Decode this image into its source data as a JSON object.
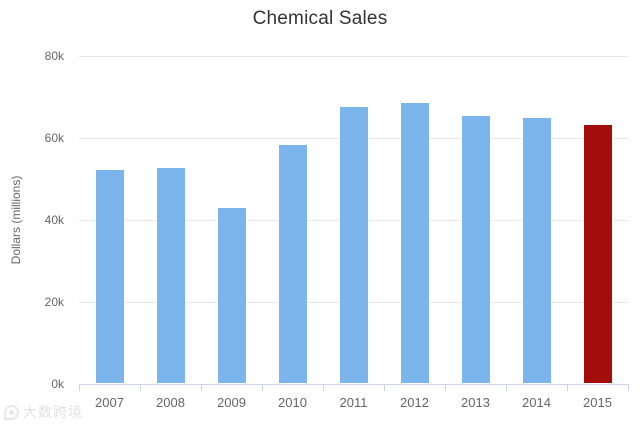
{
  "chart_data": {
    "type": "bar",
    "title": "Chemical Sales",
    "xlabel": "",
    "ylabel": "Dollars (millions)",
    "categories": [
      "2007",
      "2008",
      "2009",
      "2010",
      "2011",
      "2012",
      "2013",
      "2014",
      "2015"
    ],
    "values": [
      52400,
      53000,
      43200,
      58500,
      67800,
      68900,
      65600,
      65200,
      63500
    ],
    "ylim": [
      0,
      80000
    ],
    "yticks_top_to_bottom": [
      "80k",
      "60k",
      "40k",
      "20k",
      "0k"
    ],
    "grid": true,
    "legend": false,
    "bar_colors": [
      "#7cb5ec",
      "#7cb5ec",
      "#7cb5ec",
      "#7cb5ec",
      "#7cb5ec",
      "#7cb5ec",
      "#7cb5ec",
      "#7cb5ec",
      "#a50d0d"
    ]
  },
  "colors": {
    "bar_default": "#7cb5ec",
    "bar_highlight": "#a50d0d",
    "gridline": "#e6e6e6",
    "axis_line": "#ccd6eb",
    "title_text": "#333333",
    "label_text": "#666666"
  },
  "watermark": {
    "text": "大数跨境"
  }
}
